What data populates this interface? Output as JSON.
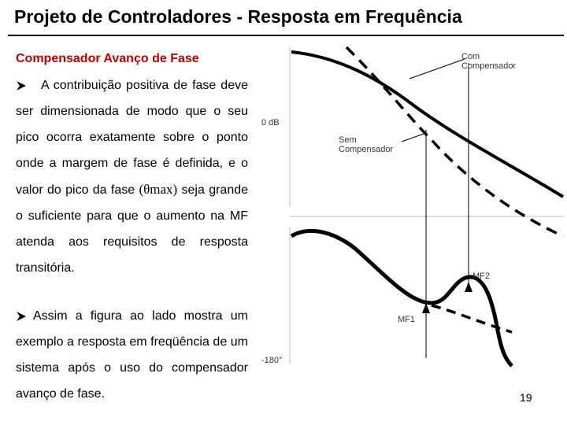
{
  "header": {
    "title": "Projeto de Controladores - Resposta em Frequência"
  },
  "section": {
    "title": "Compensador Avanço de Fase"
  },
  "bullets": [
    {
      "parts": [
        "A contribuição positiva de fase deve ser dimensionada de modo que o seu pico ocorra exatamente sobre o ponto onde a margem de fase é definida, e o valor do pico da fase ",
        "(θmax)",
        " seja grande o suficiente para que o aumento na MF atenda aos requisitos de resposta transitória."
      ]
    },
    {
      "parts": [
        "Assim a figura ao lado mostra um exemplo a resposta em freqüência de um sistema após o uso do compensador avanço de fase."
      ]
    }
  ],
  "figure": {
    "labels": {
      "with_compensator": "Com Compensador",
      "zero_db": "0 dB",
      "without_compensator": "Sem Compensador",
      "mf2": "MF2",
      "mf1": "MF1",
      "minus_180": "-180°"
    }
  },
  "footer": {
    "page": "19"
  }
}
